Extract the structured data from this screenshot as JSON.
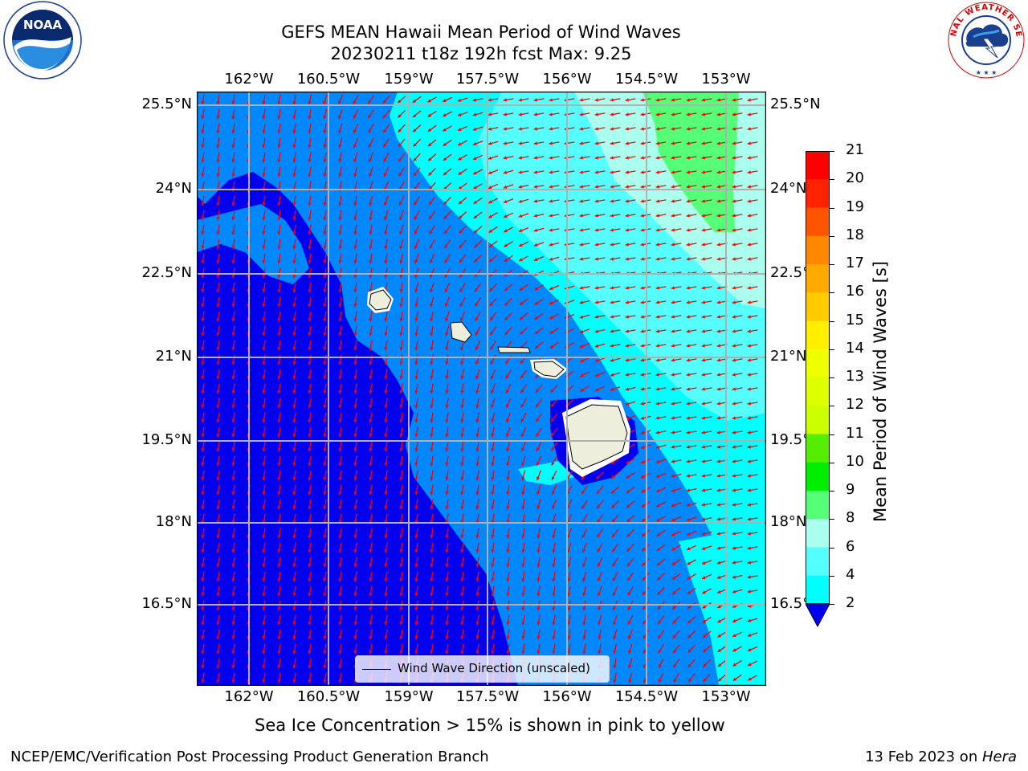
{
  "header": {
    "title_line1": "GEFS MEAN Hawaii Mean Period of Wind Waves",
    "title_line2": "20230211 t18z 192h fcst   Max: 9.25"
  },
  "logos": {
    "left": {
      "text": "NOAA",
      "ring_text": "NATIONAL OCEANIC AND ATMOSPHERIC ADMINISTRATION · U.S. DEPARTMENT OF COMMERCE",
      "icon": "noaa-logo"
    },
    "right": {
      "ring_text": "NATIONAL WEATHER SERVICE",
      "icon": "nws-logo"
    }
  },
  "map": {
    "lon_labels": [
      "162°W",
      "160.5°W",
      "159°W",
      "157.5°W",
      "156°W",
      "154.5°W",
      "153°W"
    ],
    "lat_labels": [
      "25.5°N",
      "24°N",
      "22.5°N",
      "21°N",
      "19.5°N",
      "18°N",
      "16.5°N"
    ],
    "legend_label": "Wind Wave Direction (unscaled)",
    "arrow_color": "#ff0000",
    "land_color": "#eeeedd"
  },
  "colorbar": {
    "label": "Mean Period of Wind Waves [s]",
    "ticks": [
      "21",
      "20",
      "19",
      "18",
      "17",
      "16",
      "15",
      "14",
      "13",
      "12",
      "11",
      "10",
      "9",
      "8",
      "6",
      "4",
      "2"
    ],
    "colors": [
      "#ff0000",
      "#ff2200",
      "#ff5500",
      "#ff8800",
      "#ffaa00",
      "#ffcc00",
      "#ffee00",
      "#eeff00",
      "#ddff00",
      "#ccff00",
      "#55ee00",
      "#00ee00",
      "#55ff77",
      "#aaffee",
      "#55ffff",
      "#00ffff",
      "#0088ff"
    ],
    "under_color": "#0000ee"
  },
  "notes": {
    "ice": "Sea Ice Concentration > 15% is shown in pink to yellow"
  },
  "footer": {
    "left": "NCEP/EMC/Verification Post Processing Product Generation Branch",
    "right_prefix": "13 Feb 2023 on ",
    "right_machine": "Hera"
  }
}
